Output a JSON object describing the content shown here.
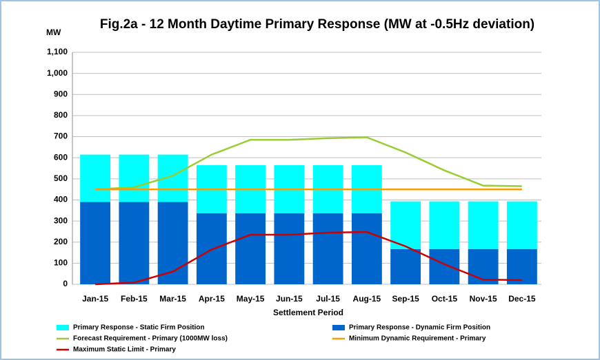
{
  "chart_data": {
    "type": "bar",
    "title": "Fig.2a - 12 Month Daytime Primary Response (MW at -0.5Hz deviation)",
    "y_label": "MW",
    "x_label": "Settlement Period",
    "categories": [
      "Jan-15",
      "Feb-15",
      "Mar-15",
      "Apr-15",
      "May-15",
      "Jun-15",
      "Jul-15",
      "Aug-15",
      "Sep-15",
      "Oct-15",
      "Nov-15",
      "Dec-15"
    ],
    "stacked": true,
    "grid": true,
    "legend": "bottom",
    "ylim": [
      0,
      1100
    ],
    "yticks": [
      0,
      100,
      200,
      300,
      400,
      500,
      600,
      700,
      800,
      900,
      {
        "value": 1000,
        "label": "1,000"
      },
      {
        "value": 1100,
        "label": "1,100"
      }
    ],
    "series": [
      {
        "name": "Primary Response - Static Firm Position",
        "type": "bar",
        "color": "#00ffff",
        "values": [
          225,
          225,
          225,
          228,
          228,
          228,
          228,
          228,
          226,
          226,
          226,
          226
        ]
      },
      {
        "name": "Primary Response - Dynamic Firm Position",
        "type": "bar",
        "color": "#0066cc",
        "values": [
          390,
          390,
          390,
          337,
          337,
          337,
          337,
          337,
          167,
          167,
          167,
          167
        ]
      },
      {
        "name": "Forecast Requirement  - Primary (1000MW loss)",
        "type": "line",
        "color": "#99cc33",
        "values": [
          450,
          460,
          515,
          615,
          685,
          685,
          693,
          697,
          625,
          540,
          468,
          465
        ]
      },
      {
        "name": "Minimum Dynamic Requirement  - Primary",
        "type": "line",
        "color": "#ff9900",
        "values": [
          450,
          450,
          450,
          450,
          450,
          450,
          450,
          450,
          450,
          450,
          450,
          450
        ]
      },
      {
        "name": "Maximum Static Limit - Primary",
        "type": "line",
        "color": "#cc0000",
        "values": [
          0,
          8,
          60,
          165,
          235,
          235,
          245,
          248,
          180,
          95,
          22,
          20
        ]
      }
    ]
  }
}
